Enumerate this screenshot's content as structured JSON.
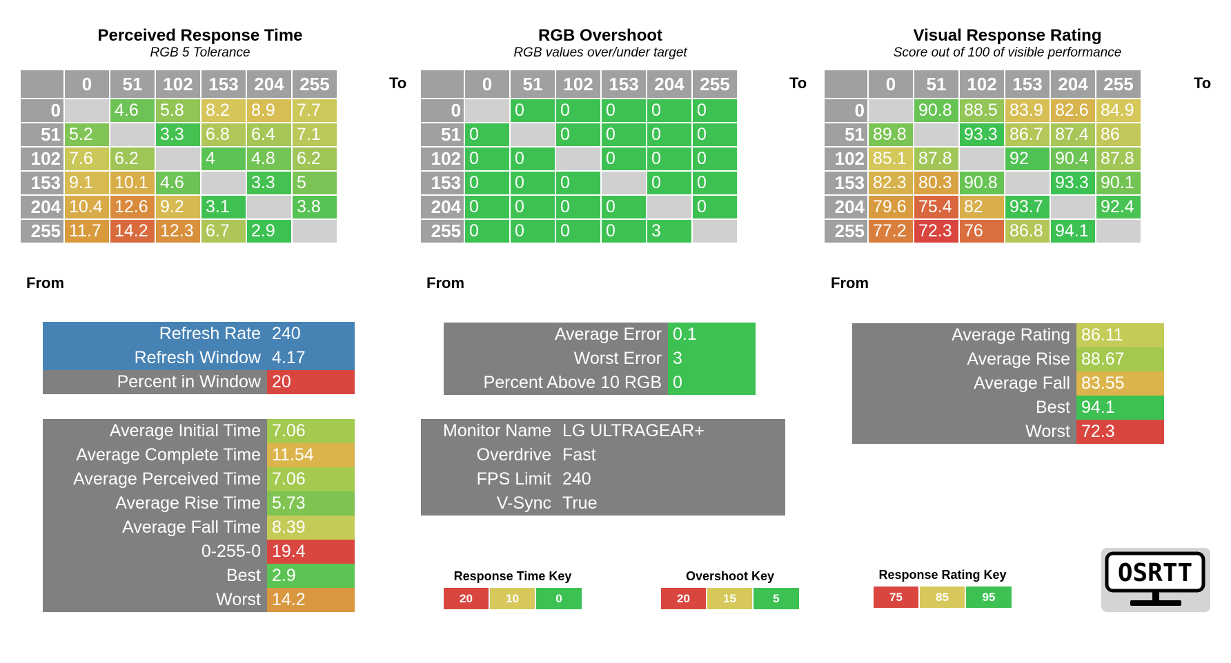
{
  "axis_labels": {
    "to": "To",
    "from": "From"
  },
  "headers": [
    "0",
    "51",
    "102",
    "153",
    "204",
    "255"
  ],
  "response_time": {
    "title": "Perceived Response Time",
    "subtitle": "RGB 5 Tolerance",
    "rows": [
      [
        "",
        "4.6",
        "5.8",
        "8.2",
        "8.9",
        "7.7"
      ],
      [
        "5.2",
        "",
        "3.3",
        "6.8",
        "6.4",
        "7.1"
      ],
      [
        "7.6",
        "6.2",
        "",
        "4",
        "4.8",
        "6.2"
      ],
      [
        "9.1",
        "10.1",
        "4.6",
        "",
        "3.3",
        "5"
      ],
      [
        "10.4",
        "12.6",
        "9.2",
        "3.1",
        "",
        "3.8"
      ],
      [
        "11.7",
        "14.2",
        "12.3",
        "6.7",
        "2.9",
        ""
      ]
    ]
  },
  "overshoot": {
    "title": "RGB Overshoot",
    "subtitle": "RGB values over/under target",
    "rows": [
      [
        "",
        "0",
        "0",
        "0",
        "0",
        "0"
      ],
      [
        "0",
        "",
        "0",
        "0",
        "0",
        "0"
      ],
      [
        "0",
        "0",
        "",
        "0",
        "0",
        "0"
      ],
      [
        "0",
        "0",
        "0",
        "",
        "0",
        "0"
      ],
      [
        "0",
        "0",
        "0",
        "0",
        "",
        "0"
      ],
      [
        "0",
        "0",
        "0",
        "0",
        "3",
        ""
      ]
    ]
  },
  "visual_rating": {
    "title": "Visual Response Rating",
    "subtitle": "Score out of 100 of visible performance",
    "rows": [
      [
        "",
        "90.8",
        "88.5",
        "83.9",
        "82.6",
        "84.9"
      ],
      [
        "89.8",
        "",
        "93.3",
        "86.7",
        "87.4",
        "86"
      ],
      [
        "85.1",
        "87.8",
        "",
        "92",
        "90.4",
        "87.8"
      ],
      [
        "82.3",
        "80.3",
        "90.8",
        "",
        "93.3",
        "90.1"
      ],
      [
        "79.6",
        "75.4",
        "82",
        "93.7",
        "",
        "92.4"
      ],
      [
        "77.2",
        "72.3",
        "76",
        "86.8",
        "94.1",
        ""
      ]
    ]
  },
  "refresh_stats": [
    {
      "label": "Refresh Rate",
      "value": "240"
    },
    {
      "label": "Refresh Window",
      "value": "4.17"
    },
    {
      "label": "Percent in Window",
      "value": "20"
    }
  ],
  "time_stats": [
    {
      "label": "Average Initial Time",
      "value": "7.06"
    },
    {
      "label": "Average Complete Time",
      "value": "11.54"
    },
    {
      "label": "Average Perceived Time",
      "value": "7.06"
    },
    {
      "label": "Average Rise Time",
      "value": "5.73"
    },
    {
      "label": "Average Fall Time",
      "value": "8.39"
    },
    {
      "label": "0-255-0",
      "value": "19.4"
    },
    {
      "label": "Best",
      "value": "2.9"
    },
    {
      "label": "Worst",
      "value": "14.2"
    }
  ],
  "error_stats": [
    {
      "label": "Average Error",
      "value": "0.1"
    },
    {
      "label": "Worst Error",
      "value": "3"
    },
    {
      "label": "Percent Above 10 RGB",
      "value": "0"
    }
  ],
  "monitor_info": [
    {
      "label": "Monitor Name",
      "value": "LG ULTRAGEAR+"
    },
    {
      "label": "Overdrive",
      "value": "Fast"
    },
    {
      "label": "FPS Limit",
      "value": "240"
    },
    {
      "label": "V-Sync",
      "value": "True"
    }
  ],
  "rating_stats": [
    {
      "label": "Average Rating",
      "value": "86.11"
    },
    {
      "label": "Average Rise",
      "value": "88.67"
    },
    {
      "label": "Average Fall",
      "value": "83.55"
    },
    {
      "label": "Best",
      "value": "94.1"
    },
    {
      "label": "Worst",
      "value": "72.3"
    }
  ],
  "keys": {
    "response_time": {
      "title": "Response Time Key",
      "values": [
        "20",
        "10",
        "0"
      ]
    },
    "overshoot": {
      "title": "Overshoot Key",
      "values": [
        "20",
        "15",
        "5"
      ]
    },
    "rating": {
      "title": "Response Rating Key",
      "values": [
        "75",
        "85",
        "95"
      ]
    }
  },
  "logo": {
    "text": "OSRTT",
    "icon": "monitor-icon"
  },
  "colors": {
    "green": "#3cc152",
    "yellow": "#d6c85a",
    "red": "#d9463f",
    "blue": "#4682b4",
    "panel_gray": "#808080",
    "header_gray": "#a0a0a0",
    "diagonal_gray": "#d0d0d0"
  }
}
